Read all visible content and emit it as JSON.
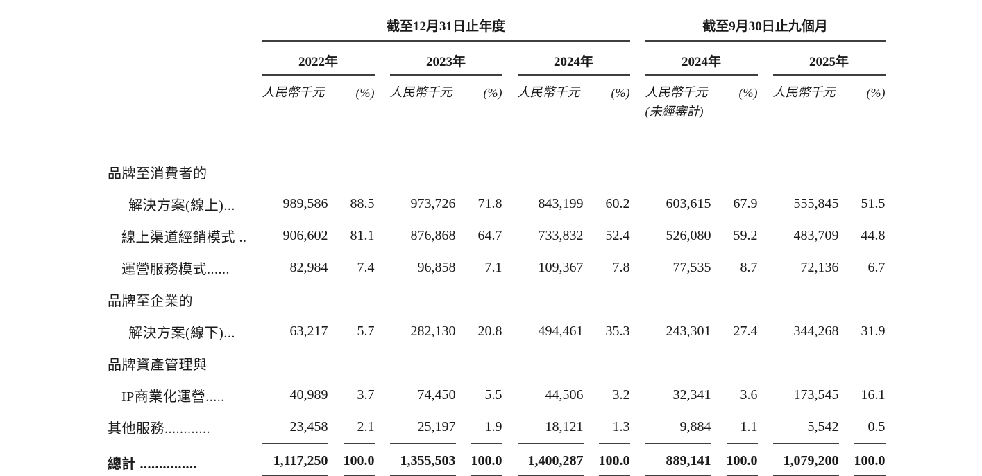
{
  "header": {
    "groups": [
      {
        "title": "截至12月31日止年度"
      },
      {
        "title": "截至9月30日止九個月"
      }
    ],
    "years": [
      {
        "label": "2022年"
      },
      {
        "label": "2023年"
      },
      {
        "label": "2024年"
      },
      {
        "label": "2024年"
      },
      {
        "label": "2025年"
      }
    ],
    "unit_label": "人民幣千元",
    "pct_label": "(%)",
    "unaudited_note": "(未經審計)"
  },
  "rows": [
    {
      "label": "品牌至消費者的",
      "values": null
    },
    {
      "label": "解決方案(線上)...",
      "values": [
        "989,586",
        "88.5",
        "973,726",
        "71.8",
        "843,199",
        "60.2",
        "603,615",
        "67.9",
        "555,845",
        "51.5"
      ]
    },
    {
      "label": "線上渠道經銷模式 ..",
      "values": [
        "906,602",
        "81.1",
        "876,868",
        "64.7",
        "733,832",
        "52.4",
        "526,080",
        "59.2",
        "483,709",
        "44.8"
      ]
    },
    {
      "label": "運營服務模式......",
      "values": [
        "82,984",
        "7.4",
        "96,858",
        "7.1",
        "109,367",
        "7.8",
        "77,535",
        "8.7",
        "72,136",
        "6.7"
      ]
    },
    {
      "label": "品牌至企業的",
      "values": null
    },
    {
      "label": "解決方案(線下)...",
      "values": [
        "63,217",
        "5.7",
        "282,130",
        "20.8",
        "494,461",
        "35.3",
        "243,301",
        "27.4",
        "344,268",
        "31.9"
      ]
    },
    {
      "label": "品牌資產管理與",
      "values": null
    },
    {
      "label": "IP商業化運營.....",
      "values": [
        "40,989",
        "3.7",
        "74,450",
        "5.5",
        "44,506",
        "3.2",
        "32,341",
        "3.6",
        "173,545",
        "16.1"
      ]
    },
    {
      "label": "其他服務............",
      "values": [
        "23,458",
        "2.1",
        "25,197",
        "1.9",
        "18,121",
        "1.3",
        "9,884",
        "1.1",
        "5,542",
        "0.5"
      ]
    }
  ],
  "total": {
    "label": "總計 ...............",
    "values": [
      "1,117,250",
      "100.0",
      "1,355,503",
      "100.0",
      "1,400,287",
      "100.0",
      "889,141",
      "100.0",
      "1,079,200",
      "100.0"
    ]
  }
}
